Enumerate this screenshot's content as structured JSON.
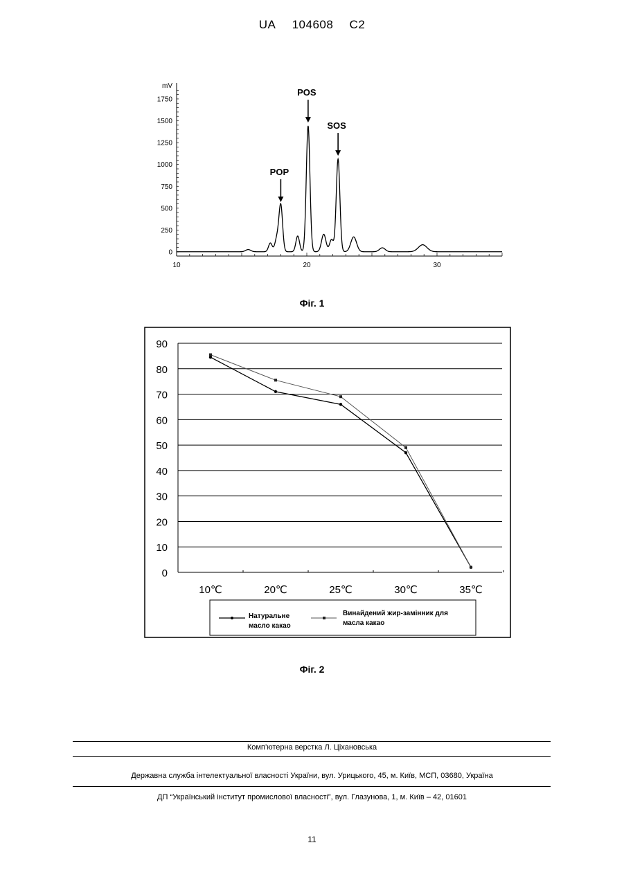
{
  "header": {
    "country": "UA",
    "number": "104608",
    "kind": "C2"
  },
  "fig1": {
    "caption": "Фіг. 1",
    "chart_data": {
      "type": "line",
      "title": "",
      "ylabel": "mV",
      "xlabel": "",
      "xlim": [
        10,
        35
      ],
      "ylim": [
        0,
        1900
      ],
      "x_ticks": [
        10,
        20,
        30
      ],
      "y_ticks": [
        0,
        250,
        500,
        750,
        1000,
        1250,
        1500,
        1750
      ],
      "peaks": [
        {
          "label": "",
          "x": 15.5,
          "height": 25,
          "width": 0.2
        },
        {
          "label": "",
          "x": 17.2,
          "height": 100,
          "width": 0.14
        },
        {
          "label": "",
          "x": 17.7,
          "height": 150,
          "width": 0.15
        },
        {
          "label": "POP",
          "x": 18.0,
          "height": 530,
          "width": 0.14
        },
        {
          "label": "",
          "x": 19.3,
          "height": 180,
          "width": 0.14
        },
        {
          "label": "POS",
          "x": 20.1,
          "height": 1440,
          "width": 0.14
        },
        {
          "label": "",
          "x": 21.3,
          "height": 200,
          "width": 0.17
        },
        {
          "label": "",
          "x": 21.9,
          "height": 140,
          "width": 0.15
        },
        {
          "label": "SOS",
          "x": 22.4,
          "height": 1060,
          "width": 0.14
        },
        {
          "label": "",
          "x": 23.6,
          "height": 170,
          "width": 0.22
        },
        {
          "label": "",
          "x": 25.8,
          "height": 45,
          "width": 0.22
        },
        {
          "label": "",
          "x": 28.9,
          "height": 80,
          "width": 0.33
        }
      ],
      "annotations": [
        "POP",
        "POS",
        "SOS"
      ]
    }
  },
  "fig2": {
    "caption": "Фіг. 2",
    "chart_data": {
      "type": "line",
      "title": "",
      "xlabel": "",
      "ylabel": "",
      "categories": [
        "10℃",
        "20℃",
        "25℃",
        "30℃",
        "35℃"
      ],
      "ylim": [
        0,
        90
      ],
      "y_ticks": [
        0,
        10,
        20,
        30,
        40,
        50,
        60,
        70,
        80,
        90
      ],
      "grid": true,
      "series": [
        {
          "name": "Натуральне масло какао",
          "values": [
            84.5,
            71,
            66,
            47,
            2
          ]
        },
        {
          "name": "Винайдений жир-замінник для масла какао",
          "values": [
            85.5,
            75.5,
            69,
            49,
            2
          ]
        }
      ],
      "legend": {
        "placement": "bottom",
        "items": [
          {
            "line1": "Натуральне",
            "line2": "масло какао"
          },
          {
            "line1": "Винайдений жир-замінник для",
            "line2": "масла какао"
          }
        ]
      }
    }
  },
  "footer": {
    "typesetting": "Комп’ютерна верстка Л. Ціхановська",
    "agency": "Державна служба інтелектуальної власності України, вул. Урицького, 45, м. Київ, МСП, 03680, Україна",
    "institute": "ДП “Український інститут промислової власності”, вул. Глазунова, 1, м. Київ – 42, 01601"
  },
  "page_number": "11"
}
